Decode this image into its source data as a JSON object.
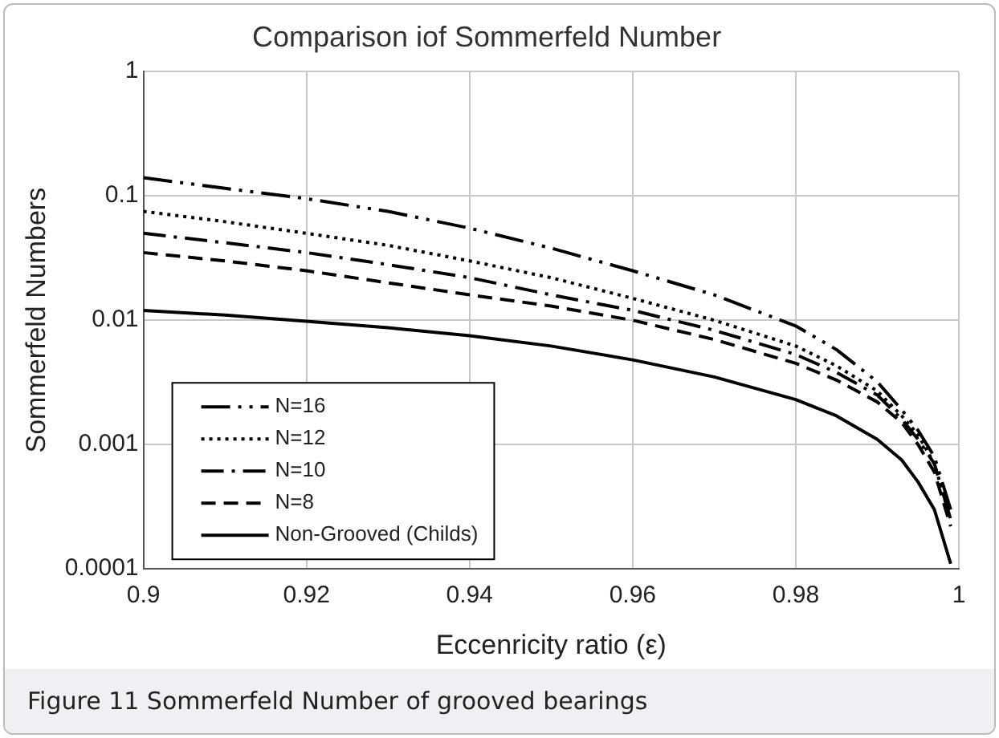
{
  "chart_data": {
    "type": "line",
    "title": "Comparison iof Sommerfeld Number",
    "xlabel": "Eccenricity ratio (ε)",
    "ylabel": "Sommerfeld Numbers",
    "annotations": [
      "Figure 11  Sommerfeld Number of grooved bearings"
    ],
    "x": [
      0.9,
      0.91,
      0.92,
      0.93,
      0.94,
      0.95,
      0.96,
      0.97,
      0.98,
      0.985,
      0.99,
      0.993,
      0.995,
      0.997,
      0.999
    ],
    "series": [
      {
        "name": "N=16",
        "color": "#000000",
        "line_style": "dashed",
        "values": [
          0.14,
          0.115,
          0.095,
          0.075,
          0.055,
          0.038,
          0.025,
          0.016,
          0.009,
          0.0058,
          0.0032,
          0.0019,
          0.0013,
          0.0008,
          0.0003
        ]
      },
      {
        "name": "N=12",
        "color": "#000000",
        "line_style": "dotted",
        "values": [
          0.075,
          0.062,
          0.05,
          0.04,
          0.03,
          0.022,
          0.015,
          0.01,
          0.0062,
          0.0043,
          0.0027,
          0.0017,
          0.0012,
          0.0007,
          0.00025
        ]
      },
      {
        "name": "N=10",
        "color": "#000000",
        "line_style": "dashed",
        "values": [
          0.05,
          0.042,
          0.035,
          0.028,
          0.022,
          0.016,
          0.012,
          0.0083,
          0.0053,
          0.0038,
          0.0025,
          0.0016,
          0.0011,
          0.0007,
          0.00025
        ]
      },
      {
        "name": "N=8",
        "color": "#000000",
        "line_style": "dashed",
        "values": [
          0.035,
          0.03,
          0.025,
          0.02,
          0.016,
          0.013,
          0.01,
          0.007,
          0.0045,
          0.0033,
          0.0022,
          0.0015,
          0.001,
          0.0006,
          0.00022
        ]
      },
      {
        "name": "Non-Grooved (Childs)",
        "color": "#000000",
        "line_style": "solid",
        "values": [
          0.012,
          0.011,
          0.0098,
          0.0087,
          0.0075,
          0.0062,
          0.0048,
          0.0035,
          0.0023,
          0.0017,
          0.0011,
          0.00075,
          0.0005,
          0.0003,
          0.00011
        ]
      }
    ],
    "xlim": [
      0.9,
      1
    ],
    "xticks": [
      0.9,
      0.92,
      0.94,
      0.96,
      0.98,
      1
    ],
    "ylim": [
      0.0001,
      1
    ],
    "yticks": [
      0.0001,
      0.001,
      0.01,
      0.1,
      1
    ],
    "log": "y",
    "grid": true,
    "legend": "bottom left",
    "marker": "none"
  }
}
